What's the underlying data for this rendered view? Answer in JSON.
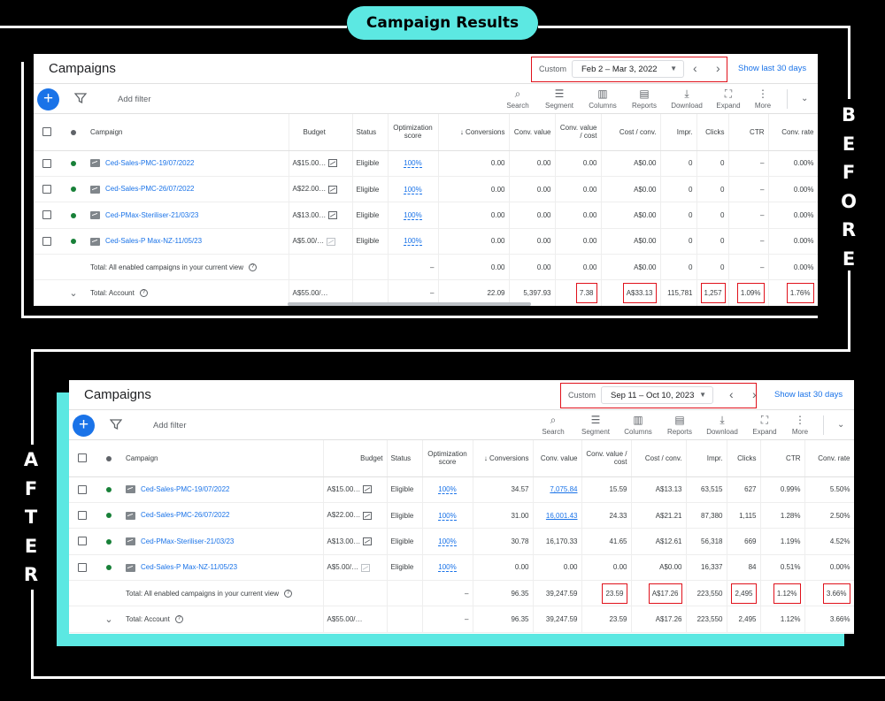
{
  "header": {
    "title": "Campaign Results"
  },
  "side_labels": {
    "before": [
      "B",
      "E",
      "F",
      "O",
      "R",
      "E"
    ],
    "after": [
      "A",
      "F",
      "T",
      "E",
      "R"
    ]
  },
  "colors": {
    "accent_teal": "#5ce8e2",
    "highlight_red": "#e0111b",
    "link_blue": "#1a73e8",
    "enabled_green": "#188038"
  },
  "panels": [
    {
      "title": "Campaigns",
      "date_label": "Custom",
      "date_range": "Feb 2 – Mar 3, 2022",
      "show_last": "Show last 30 days",
      "add_filter": "Add filter",
      "tools": [
        {
          "label": "Search",
          "icon": "search-icon"
        },
        {
          "label": "Segment",
          "icon": "segment-icon"
        },
        {
          "label": "Columns",
          "icon": "columns-icon"
        },
        {
          "label": "Reports",
          "icon": "reports-icon"
        },
        {
          "label": "Download",
          "icon": "download-icon"
        },
        {
          "label": "Expand",
          "icon": "expand-icon"
        },
        {
          "label": "More",
          "icon": "more-icon"
        }
      ],
      "columns": [
        "Campaign",
        "Budget",
        "Status",
        "Optimization score",
        "↓ Conversions",
        "Conv. value",
        "Conv. value / cost",
        "Cost / conv.",
        "Impr.",
        "Clicks",
        "CTR",
        "Conv. rate"
      ],
      "rows": [
        {
          "campaign": "Ced-Sales-PMC-19/07/2022",
          "budget": "A$15.00…",
          "status": "Eligible",
          "opt": "100%",
          "conversions": "0.00",
          "conv_value": "0.00",
          "value_cost": "0.00",
          "cost_conv": "A$0.00",
          "impr": "0",
          "clicks": "0",
          "ctr": "–",
          "conv_rate": "0.00%"
        },
        {
          "campaign": "Ced-Sales-PMC-26/07/2022",
          "budget": "A$22.00…",
          "status": "Eligible",
          "opt": "100%",
          "conversions": "0.00",
          "conv_value": "0.00",
          "value_cost": "0.00",
          "cost_conv": "A$0.00",
          "impr": "0",
          "clicks": "0",
          "ctr": "–",
          "conv_rate": "0.00%"
        },
        {
          "campaign": "Ced-PMax-Steriliser-21/03/23",
          "budget": "A$13.00…",
          "status": "Eligible",
          "opt": "100%",
          "conversions": "0.00",
          "conv_value": "0.00",
          "value_cost": "0.00",
          "cost_conv": "A$0.00",
          "impr": "0",
          "clicks": "0",
          "ctr": "–",
          "conv_rate": "0.00%"
        },
        {
          "campaign": "Ced-Sales-P Max-NZ-11/05/23",
          "budget": "A$5.00/…",
          "status": "Eligible",
          "opt": "100%",
          "conversions": "0.00",
          "conv_value": "0.00",
          "value_cost": "0.00",
          "cost_conv": "A$0.00",
          "impr": "0",
          "clicks": "0",
          "ctr": "–",
          "conv_rate": "0.00%"
        }
      ],
      "total_enabled": {
        "label": "Total: All enabled campaigns in your current view",
        "opt": "–",
        "conversions": "0.00",
        "conv_value": "0.00",
        "value_cost": "0.00",
        "cost_conv": "A$0.00",
        "impr": "0",
        "clicks": "0",
        "ctr": "–",
        "conv_rate": "0.00%"
      },
      "total_account": {
        "label": "Total: Account",
        "budget": "A$55.00/…",
        "opt": "–",
        "conversions": "22.09",
        "conv_value": "5,397.93",
        "value_cost": "7.38",
        "cost_conv": "A$33.13",
        "impr": "115,781",
        "clicks": "1,257",
        "ctr": "1.09%",
        "conv_rate": "1.76%"
      }
    },
    {
      "title": "Campaigns",
      "date_label": "Custom",
      "date_range": "Sep 11 – Oct 10, 2023",
      "show_last": "Show last 30 days",
      "add_filter": "Add filter",
      "tools": [
        {
          "label": "Search",
          "icon": "search-icon"
        },
        {
          "label": "Segment",
          "icon": "segment-icon"
        },
        {
          "label": "Columns",
          "icon": "columns-icon"
        },
        {
          "label": "Reports",
          "icon": "reports-icon"
        },
        {
          "label": "Download",
          "icon": "download-icon"
        },
        {
          "label": "Expand",
          "icon": "expand-icon"
        },
        {
          "label": "More",
          "icon": "more-icon"
        }
      ],
      "columns": [
        "Campaign",
        "Budget",
        "Status",
        "Optimization score",
        "↓ Conversions",
        "Conv. value",
        "Conv. value / cost",
        "Cost / conv.",
        "Impr.",
        "Clicks",
        "CTR",
        "Conv. rate"
      ],
      "rows": [
        {
          "campaign": "Ced-Sales-PMC-19/07/2022",
          "budget": "A$15.00…",
          "status": "Eligible",
          "opt": "100%",
          "conversions": "34.57",
          "conv_value": "7,075.84",
          "value_cost": "15.59",
          "cost_conv": "A$13.13",
          "impr": "63,515",
          "clicks": "627",
          "ctr": "0.99%",
          "conv_rate": "5.50%"
        },
        {
          "campaign": "Ced-Sales-PMC-26/07/2022",
          "budget": "A$22.00…",
          "status": "Eligible",
          "opt": "100%",
          "conversions": "31.00",
          "conv_value": "16,001.43",
          "value_cost": "24.33",
          "cost_conv": "A$21.21",
          "impr": "87,380",
          "clicks": "1,115",
          "ctr": "1.28%",
          "conv_rate": "2.50%"
        },
        {
          "campaign": "Ced-PMax-Steriliser-21/03/23",
          "budget": "A$13.00…",
          "status": "Eligible",
          "opt": "100%",
          "conversions": "30.78",
          "conv_value": "16,170.33",
          "value_cost": "41.65",
          "cost_conv": "A$12.61",
          "impr": "56,318",
          "clicks": "669",
          "ctr": "1.19%",
          "conv_rate": "4.52%"
        },
        {
          "campaign": "Ced-Sales-P Max-NZ-11/05/23",
          "budget": "A$5.00/…",
          "status": "Eligible",
          "opt": "100%",
          "conversions": "0.00",
          "conv_value": "0.00",
          "value_cost": "0.00",
          "cost_conv": "A$0.00",
          "impr": "16,337",
          "clicks": "84",
          "ctr": "0.51%",
          "conv_rate": "0.00%"
        }
      ],
      "total_enabled": {
        "label": "Total: All enabled campaigns in your current view",
        "opt": "–",
        "conversions": "96.35",
        "conv_value": "39,247.59",
        "value_cost": "23.59",
        "cost_conv": "A$17.26",
        "impr": "223,550",
        "clicks": "2,495",
        "ctr": "1.12%",
        "conv_rate": "3.66%"
      },
      "total_account": {
        "label": "Total: Account",
        "budget": "A$55.00/…",
        "opt": "–",
        "conversions": "96.35",
        "conv_value": "39,247.59",
        "value_cost": "23.59",
        "cost_conv": "A$17.26",
        "impr": "223,550",
        "clicks": "2,495",
        "ctr": "1.12%",
        "conv_rate": "3.66%"
      }
    }
  ]
}
